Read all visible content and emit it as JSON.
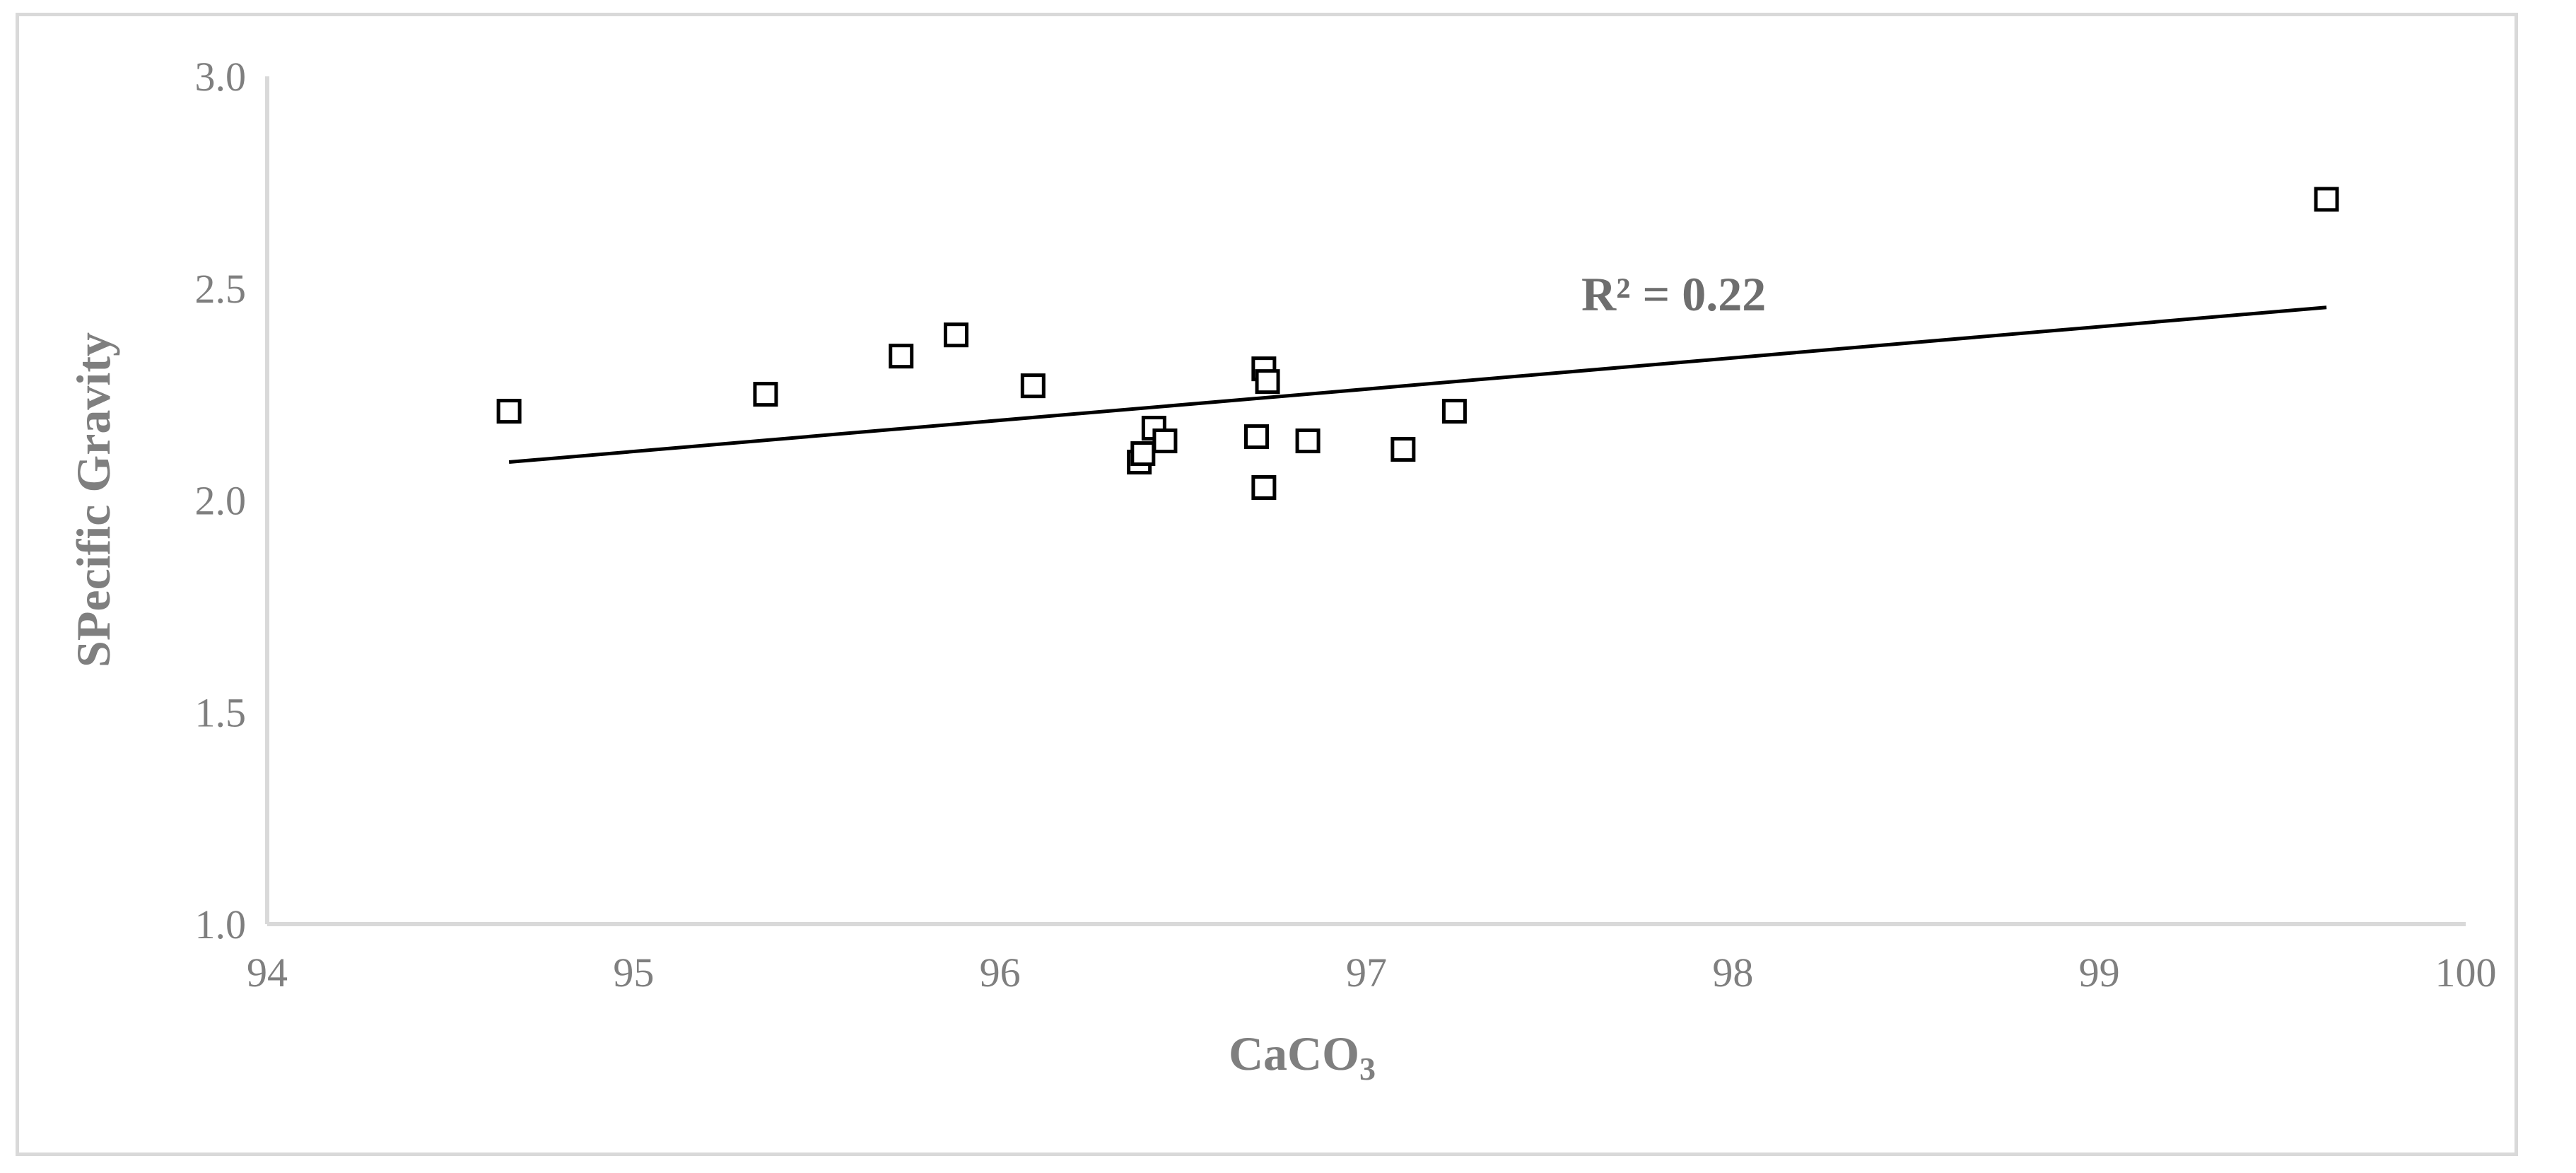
{
  "chart_data": {
    "type": "scatter",
    "title": "",
    "xlabel": "CaCO",
    "xlabel_subscript": "3",
    "ylabel": "SPecific Gravity",
    "xlim": [
      94,
      100
    ],
    "ylim": [
      1.0,
      3.0
    ],
    "x_ticks": [
      94,
      95,
      96,
      97,
      98,
      99,
      100
    ],
    "y_ticks": [
      1.0,
      1.5,
      2.0,
      2.5,
      3.0
    ],
    "x_tick_labels": [
      "94",
      "95",
      "96",
      "97",
      "98",
      "99",
      "100"
    ],
    "y_tick_labels": [
      "1.0",
      "1.5",
      "2.0",
      "2.5",
      "3.0"
    ],
    "grid": false,
    "legend": "none",
    "marker": "hollow-square",
    "marker_color": "#000000",
    "series": [
      {
        "points": [
          [
            94.66,
            2.21
          ],
          [
            95.36,
            2.25
          ],
          [
            95.73,
            2.34
          ],
          [
            95.88,
            2.39
          ],
          [
            96.09,
            2.27
          ],
          [
            96.38,
            2.09
          ],
          [
            96.39,
            2.11
          ],
          [
            96.42,
            2.17
          ],
          [
            96.45,
            2.14
          ],
          [
            96.7,
            2.15
          ],
          [
            96.72,
            2.31
          ],
          [
            96.73,
            2.28
          ],
          [
            96.72,
            2.03
          ],
          [
            96.84,
            2.14
          ],
          [
            97.1,
            2.12
          ],
          [
            97.24,
            2.21
          ],
          [
            99.62,
            2.71
          ]
        ]
      }
    ],
    "trendline": {
      "type": "linear",
      "x": [
        94.66,
        99.62
      ],
      "y": [
        2.09,
        2.455
      ],
      "color": "#000000",
      "label": "R² = 0.22"
    }
  }
}
